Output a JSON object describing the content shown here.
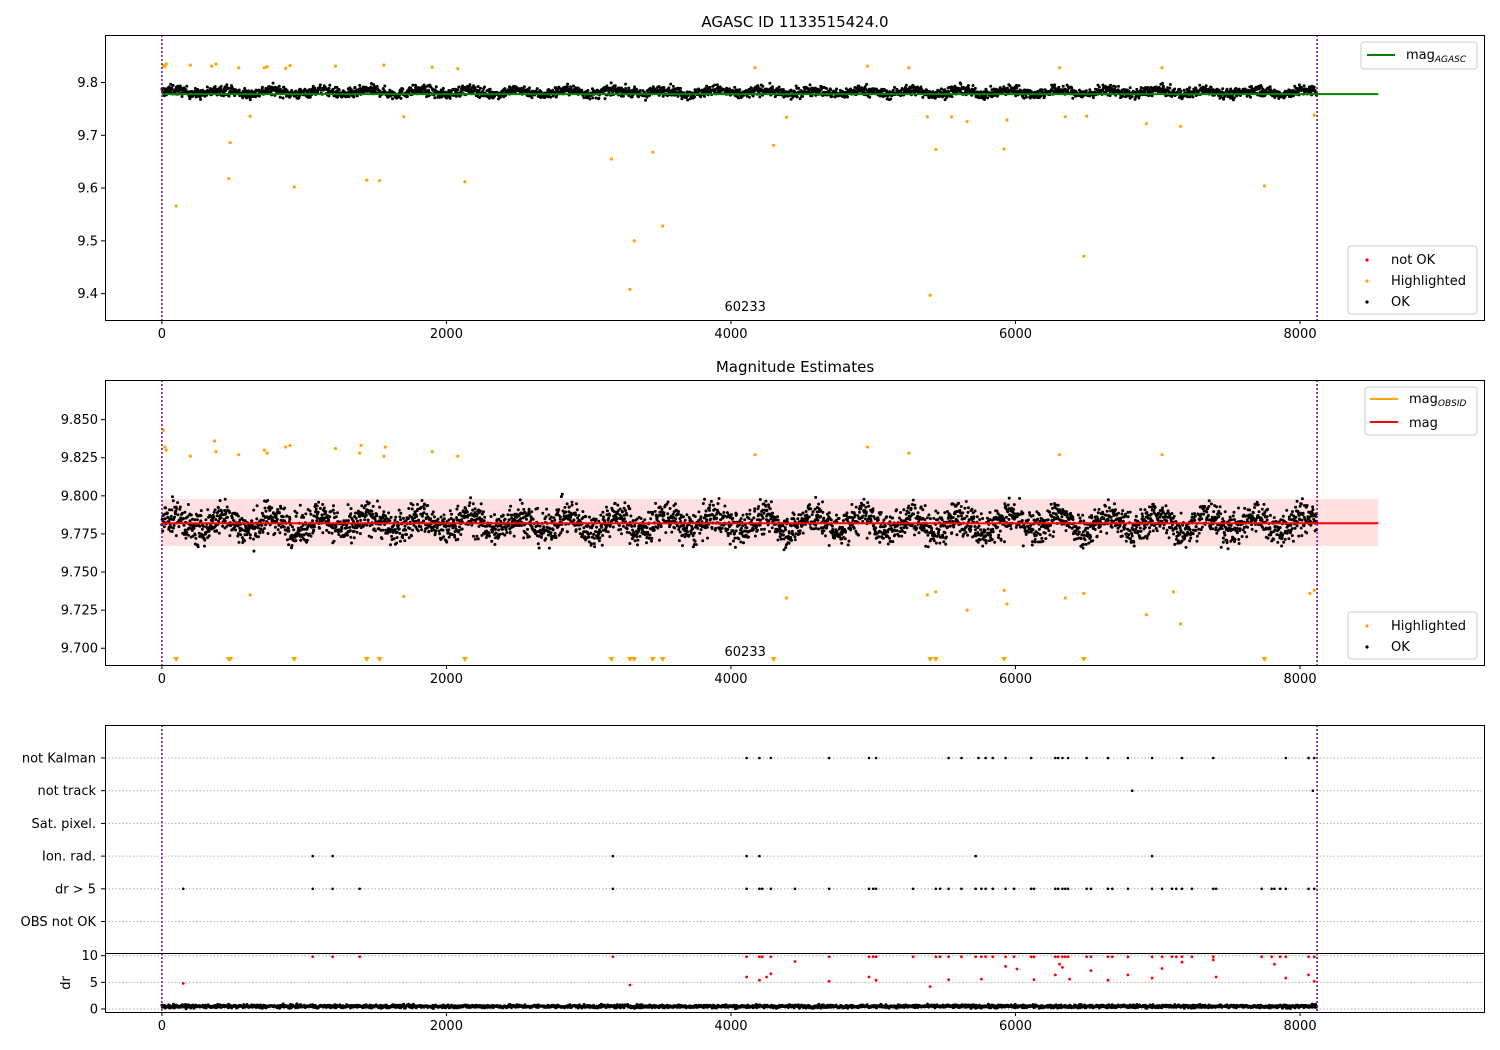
{
  "chart_data": [
    {
      "type": "scatter",
      "title": "AGASC ID 1133515424.0",
      "xlim": [
        -400,
        9300
      ],
      "ylim": [
        9.35,
        9.89
      ],
      "xticks": [
        0,
        2000,
        4000,
        6000,
        8000
      ],
      "yticks": [
        9.4,
        9.5,
        9.6,
        9.7,
        9.8
      ],
      "ytick_labels": [
        "9.4",
        "9.5",
        "9.6",
        "9.7",
        "9.8"
      ],
      "obsid_label": "60233",
      "obsid_label_x": 4100,
      "vlines": [
        0,
        8120
      ],
      "reference_line": {
        "name_base": "mag",
        "name_sub": "AGASC",
        "value": 9.778,
        "x_range": [
          0,
          8550
        ],
        "color": "#008000"
      },
      "legend_upper": "top-right",
      "legend_lower": "bottom-right",
      "series": [
        {
          "name": "not OK",
          "color": "#ff0000"
        },
        {
          "name": "Highlighted",
          "color": "#ffa500"
        },
        {
          "name": "OK",
          "color": "#000000"
        }
      ],
      "ok_band": {
        "center": 9.782,
        "spread": 0.016,
        "x_range": [
          0,
          8120
        ],
        "approx_points": 3000
      },
      "highlighted_points": [
        [
          10,
          9.832
        ],
        [
          20,
          9.83
        ],
        [
          30,
          9.835
        ],
        [
          100,
          9.566
        ],
        [
          200,
          9.833
        ],
        [
          350,
          9.831
        ],
        [
          380,
          9.835
        ],
        [
          470,
          9.618
        ],
        [
          480,
          9.686
        ],
        [
          540,
          9.828
        ],
        [
          620,
          9.736
        ],
        [
          720,
          9.828
        ],
        [
          740,
          9.83
        ],
        [
          870,
          9.827
        ],
        [
          900,
          9.832
        ],
        [
          930,
          9.602
        ],
        [
          1220,
          9.831
        ],
        [
          1440,
          9.615
        ],
        [
          1530,
          9.614
        ],
        [
          1560,
          9.833
        ],
        [
          1700,
          9.735
        ],
        [
          1900,
          9.829
        ],
        [
          2080,
          9.826
        ],
        [
          2130,
          9.612
        ],
        [
          3160,
          9.655
        ],
        [
          3290,
          9.408
        ],
        [
          3320,
          9.5
        ],
        [
          3450,
          9.668
        ],
        [
          3520,
          9.528
        ],
        [
          4170,
          9.828
        ],
        [
          4300,
          9.681
        ],
        [
          4390,
          9.734
        ],
        [
          4960,
          9.831
        ],
        [
          5250,
          9.828
        ],
        [
          5380,
          9.735
        ],
        [
          5400,
          9.397
        ],
        [
          5440,
          9.673
        ],
        [
          5550,
          9.735
        ],
        [
          5660,
          9.726
        ],
        [
          5920,
          9.674
        ],
        [
          5940,
          9.729
        ],
        [
          6310,
          9.828
        ],
        [
          6350,
          9.735
        ],
        [
          6480,
          9.471
        ],
        [
          6500,
          9.736
        ],
        [
          6920,
          9.722
        ],
        [
          7030,
          9.828
        ],
        [
          7160,
          9.717
        ],
        [
          7750,
          9.604
        ],
        [
          8100,
          9.738
        ]
      ]
    },
    {
      "type": "scatter",
      "title": "Magnitude Estimates",
      "xlim": [
        -400,
        9300
      ],
      "ylim": [
        9.689,
        9.876
      ],
      "xticks": [
        0,
        2000,
        4000,
        6000,
        8000
      ],
      "yticks": [
        9.7,
        9.725,
        9.75,
        9.775,
        9.8,
        9.825,
        9.85
      ],
      "ytick_labels": [
        "9.700",
        "9.725",
        "9.750",
        "9.775",
        "9.800",
        "9.825",
        "9.850"
      ],
      "obsid_label": "60233",
      "obsid_label_x": 4100,
      "vlines": [
        0,
        8120
      ],
      "mag_line": {
        "name": "mag",
        "value": 9.782,
        "x_range": [
          0,
          8550
        ],
        "color": "#ff0000"
      },
      "mag_band": {
        "low": 9.767,
        "high": 9.798,
        "color": "#ffdddd"
      },
      "mag_obsid": {
        "name_base": "mag",
        "name_sub": "OBSID",
        "value": 9.782,
        "band_low": 9.767,
        "band_high": 9.798,
        "color": "#ffa500"
      },
      "legend_upper": "top-right",
      "legend_lower": "bottom-right",
      "series": [
        {
          "name": "Highlighted",
          "color": "#ffa500"
        },
        {
          "name": "OK",
          "color": "#000000"
        }
      ],
      "ok_band": {
        "center": 9.782,
        "spread": 0.018,
        "x_range": [
          0,
          8120
        ],
        "approx_points": 3600
      },
      "highlighted_points": [
        [
          10,
          9.843
        ],
        [
          20,
          9.832
        ],
        [
          30,
          9.83
        ],
        [
          200,
          9.826
        ],
        [
          370,
          9.836
        ],
        [
          380,
          9.829
        ],
        [
          540,
          9.827
        ],
        [
          620,
          9.735
        ],
        [
          720,
          9.83
        ],
        [
          740,
          9.828
        ],
        [
          870,
          9.832
        ],
        [
          900,
          9.833
        ],
        [
          1220,
          9.831
        ],
        [
          1390,
          9.828
        ],
        [
          1400,
          9.833
        ],
        [
          1560,
          9.826
        ],
        [
          1570,
          9.832
        ],
        [
          1700,
          9.734
        ],
        [
          1900,
          9.829
        ],
        [
          2080,
          9.826
        ],
        [
          4170,
          9.827
        ],
        [
          4390,
          9.733
        ],
        [
          4960,
          9.832
        ],
        [
          5250,
          9.828
        ],
        [
          5380,
          9.735
        ],
        [
          5440,
          9.737
        ],
        [
          5660,
          9.725
        ],
        [
          5920,
          9.738
        ],
        [
          5940,
          9.729
        ],
        [
          6310,
          9.827
        ],
        [
          6350,
          9.733
        ],
        [
          6480,
          9.736
        ],
        [
          6920,
          9.722
        ],
        [
          7030,
          9.827
        ],
        [
          7110,
          9.737
        ],
        [
          7160,
          9.716
        ],
        [
          8070,
          9.736
        ],
        [
          8100,
          9.738
        ]
      ],
      "off_scale_markers": [
        100,
        470,
        480,
        930,
        1440,
        1530,
        2130,
        3160,
        3290,
        3320,
        3450,
        3520,
        4300,
        5400,
        5440,
        5920,
        6480,
        7750
      ]
    },
    {
      "type": "scatter",
      "title": "",
      "xlim": [
        -400,
        9300
      ],
      "xticks": [
        0,
        2000,
        4000,
        6000,
        8000
      ],
      "vlines": [
        0,
        8120
      ],
      "flag_rows": [
        {
          "label": "not Kalman",
          "x": [
            4110,
            4200,
            4280,
            4690,
            4970,
            5020,
            5530,
            5620,
            5740,
            5790,
            5840,
            5930,
            6110,
            6280,
            6300,
            6330,
            6370,
            6500,
            6650,
            6790,
            6960,
            7170,
            7390,
            7900,
            8060,
            8100
          ]
        },
        {
          "label": "not track",
          "x": [
            6820,
            8090
          ]
        },
        {
          "label": "Sat. pixel.",
          "x": []
        },
        {
          "label": "Ion. rad.",
          "x": [
            1060,
            1200,
            3170,
            4110,
            4200,
            5720,
            6960
          ]
        },
        {
          "label": "dr > 5",
          "x": [
            150,
            1060,
            1200,
            1390,
            3170,
            4110,
            4200,
            4220,
            4280,
            4450,
            4690,
            4970,
            5000,
            5020,
            5280,
            5440,
            5470,
            5530,
            5620,
            5720,
            5760,
            5790,
            5840,
            5930,
            5990,
            6110,
            6130,
            6280,
            6300,
            6330,
            6350,
            6370,
            6500,
            6530,
            6650,
            6680,
            6790,
            6960,
            7030,
            7100,
            7130,
            7170,
            7240,
            7390,
            7410,
            7730,
            7800,
            7820,
            7860,
            7900,
            8060,
            8100
          ]
        },
        {
          "label": "OBS not OK",
          "x": []
        }
      ],
      "dr_panel": {
        "ylabel": "dr",
        "ylim": [
          0,
          10.5
        ],
        "yticks": [
          0,
          5,
          10
        ],
        "ytick_labels": [
          "0",
          "5",
          "10"
        ],
        "ok_baseline": {
          "center": 0.5,
          "spread": 0.5,
          "color": "#000000",
          "approx_points": 2200
        },
        "red_points": [
          [
            150,
            4.8
          ],
          [
            1060,
            9.8
          ],
          [
            1200,
            9.8
          ],
          [
            1390,
            9.8
          ],
          [
            3170,
            9.8
          ],
          [
            3290,
            4.5
          ],
          [
            4110,
            9.8
          ],
          [
            4110,
            6.0
          ],
          [
            4200,
            9.8
          ],
          [
            4200,
            5.4
          ],
          [
            4220,
            9.8
          ],
          [
            4250,
            6.0
          ],
          [
            4280,
            9.8
          ],
          [
            4280,
            6.6
          ],
          [
            4450,
            8.9
          ],
          [
            4690,
            9.8
          ],
          [
            4690,
            5.2
          ],
          [
            4970,
            9.8
          ],
          [
            4970,
            6.0
          ],
          [
            5000,
            9.8
          ],
          [
            5020,
            9.8
          ],
          [
            5020,
            5.4
          ],
          [
            5280,
            9.8
          ],
          [
            5400,
            4.2
          ],
          [
            5440,
            9.8
          ],
          [
            5470,
            9.8
          ],
          [
            5530,
            9.8
          ],
          [
            5530,
            5.5
          ],
          [
            5620,
            9.8
          ],
          [
            5720,
            9.8
          ],
          [
            5760,
            9.8
          ],
          [
            5760,
            5.6
          ],
          [
            5790,
            9.8
          ],
          [
            5840,
            9.8
          ],
          [
            5930,
            9.8
          ],
          [
            5930,
            8.0
          ],
          [
            5990,
            9.8
          ],
          [
            6010,
            7.5
          ],
          [
            6110,
            9.8
          ],
          [
            6130,
            9.8
          ],
          [
            6130,
            5.5
          ],
          [
            6280,
            9.8
          ],
          [
            6280,
            6.4
          ],
          [
            6300,
            9.8
          ],
          [
            6310,
            8.4
          ],
          [
            6330,
            9.8
          ],
          [
            6330,
            7.8
          ],
          [
            6350,
            9.8
          ],
          [
            6370,
            9.8
          ],
          [
            6380,
            5.6
          ],
          [
            6500,
            9.8
          ],
          [
            6530,
            9.8
          ],
          [
            6530,
            7.2
          ],
          [
            6650,
            9.8
          ],
          [
            6650,
            5.4
          ],
          [
            6680,
            9.8
          ],
          [
            6790,
            9.8
          ],
          [
            6790,
            6.4
          ],
          [
            6960,
            9.8
          ],
          [
            6960,
            5.8
          ],
          [
            7030,
            9.8
          ],
          [
            7030,
            7.6
          ],
          [
            7100,
            9.8
          ],
          [
            7130,
            9.8
          ],
          [
            7170,
            9.8
          ],
          [
            7170,
            8.8
          ],
          [
            7240,
            9.8
          ],
          [
            7390,
            9.8
          ],
          [
            7390,
            9.2
          ],
          [
            7410,
            6.0
          ],
          [
            7730,
            9.8
          ],
          [
            7800,
            9.8
          ],
          [
            7820,
            8.4
          ],
          [
            7860,
            9.8
          ],
          [
            7900,
            9.8
          ],
          [
            7900,
            5.8
          ],
          [
            8060,
            9.8
          ],
          [
            8060,
            6.4
          ],
          [
            8100,
            9.8
          ],
          [
            8100,
            5.2
          ]
        ]
      }
    }
  ]
}
